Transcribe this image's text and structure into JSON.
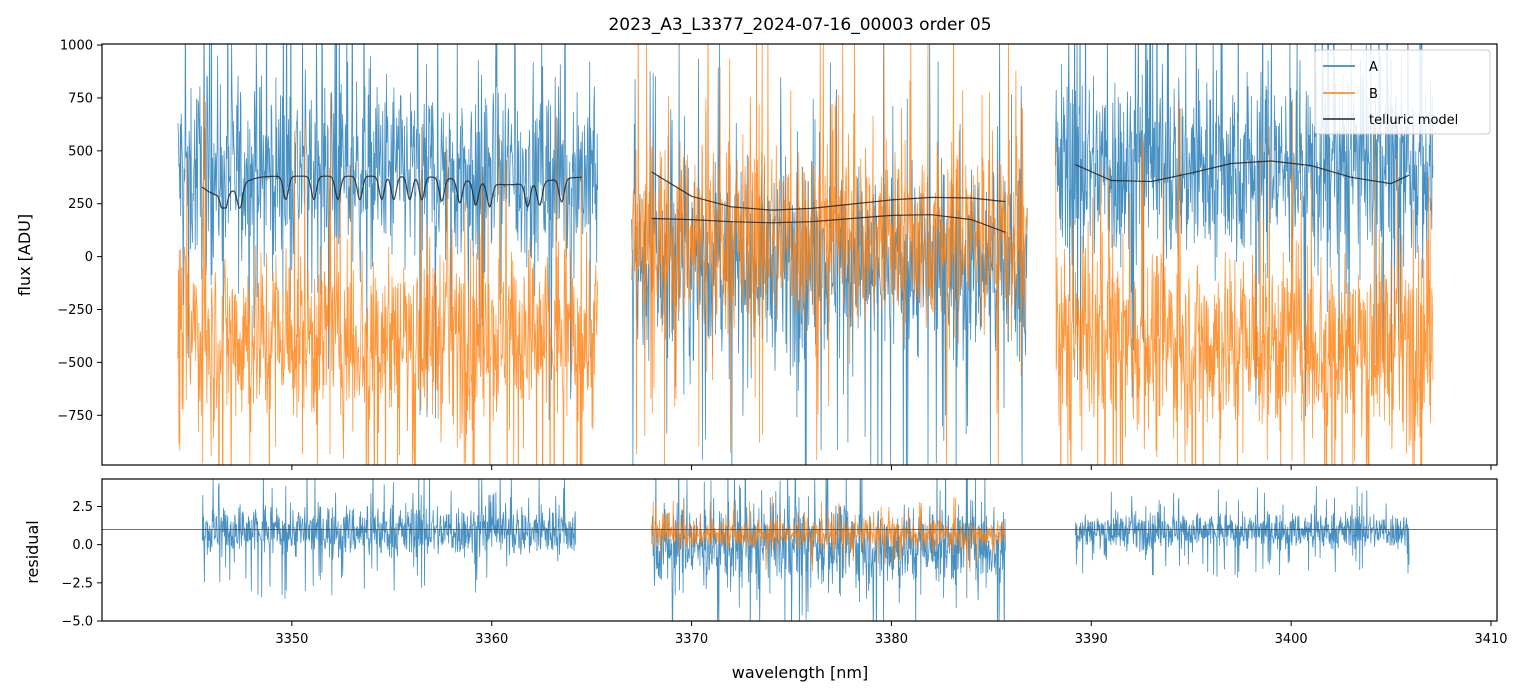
{
  "chart_data": [
    {
      "type": "line",
      "panel": "top",
      "title": "2023_A3_L3377_2024-07-16_00003  order 05",
      "xlabel": "",
      "ylabel": "flux [ADU]",
      "xlim": [
        3340.5,
        3410.3
      ],
      "ylim": [
        -985,
        1005
      ],
      "yticks": [
        -750,
        -500,
        -250,
        0,
        250,
        500,
        750,
        1000
      ],
      "ytick_labels": [
        "−750",
        "−500",
        "−250",
        "0",
        "250",
        "500",
        "750",
        "1000"
      ],
      "xticks": [
        3350,
        3360,
        3370,
        3380,
        3390,
        3400,
        3410
      ],
      "legend": {
        "placement": "top-right",
        "entries": [
          {
            "label": "A",
            "color": "#1f77b4"
          },
          {
            "label": "B",
            "color": "#ff7f0e"
          },
          {
            "label": "telluric model",
            "color": "#222222"
          }
        ]
      },
      "segments": [
        {
          "x_range": [
            3344.3,
            3365.3
          ],
          "A_mean": 400,
          "A_spread": 420,
          "B_mean": -370,
          "B_spread": 420
        },
        {
          "x_range": [
            3367.0,
            3386.8
          ],
          "A_mean": -30,
          "A_spread": 420,
          "B_mean": 100,
          "B_spread": 420
        },
        {
          "x_range": [
            3388.2,
            3407.1
          ],
          "A_mean": 420,
          "A_spread": 430,
          "B_mean": -400,
          "B_spread": 420
        }
      ],
      "telluric_model": {
        "segment_1": {
          "x": [
            3345.5,
            3364.5
          ],
          "baseline": 280,
          "continuum": 380
        },
        "segment_2_upper": {
          "x": [
            3368.0,
            3370.0,
            3372.0,
            3374.0,
            3376.0,
            3378.0,
            3380.0,
            3382.0,
            3384.0,
            3385.7
          ],
          "y": [
            400,
            285,
            235,
            220,
            228,
            248,
            268,
            280,
            277,
            260
          ]
        },
        "segment_2_lower": {
          "x": [
            3368.0,
            3370.0,
            3372.0,
            3374.0,
            3376.0,
            3378.0,
            3380.0,
            3382.0,
            3384.0,
            3385.7
          ],
          "y": [
            180,
            175,
            165,
            160,
            165,
            180,
            195,
            198,
            175,
            115
          ]
        },
        "segment_3": {
          "x": [
            3389.2,
            3391.0,
            3393.0,
            3395.0,
            3397.0,
            3399.0,
            3401.0,
            3403.0,
            3405.0,
            3405.9
          ],
          "y": [
            435,
            360,
            355,
            395,
            440,
            452,
            430,
            375,
            345,
            385
          ]
        }
      }
    },
    {
      "type": "line",
      "panel": "bottom",
      "xlabel": "wavelength [nm]",
      "ylabel": "residual",
      "xlim": [
        3340.5,
        3410.3
      ],
      "ylim": [
        -5.0,
        4.3
      ],
      "yticks": [
        -5.0,
        -2.5,
        0.0,
        2.5
      ],
      "ytick_labels": [
        "−5.0",
        "−2.5",
        "0.0",
        "2.5"
      ],
      "xticks": [
        3350,
        3360,
        3370,
        3380,
        3390,
        3400,
        3410
      ],
      "xtick_labels": [
        "3350",
        "3360",
        "3370",
        "3380",
        "3390",
        "3400",
        "3410"
      ],
      "reference_line": 1.0,
      "segments": [
        {
          "x_range": [
            3345.5,
            3364.2
          ],
          "A_mean": 0.9,
          "A_spread": 1.6
        },
        {
          "x_range": [
            3368.0,
            3385.7
          ],
          "A_mean": 0.0,
          "A_spread": 2.6,
          "B_mean": 0.7,
          "B_spread": 0.9
        },
        {
          "x_range": [
            3389.2,
            3405.9
          ],
          "A_mean": 0.9,
          "A_spread": 1.1
        }
      ]
    }
  ]
}
